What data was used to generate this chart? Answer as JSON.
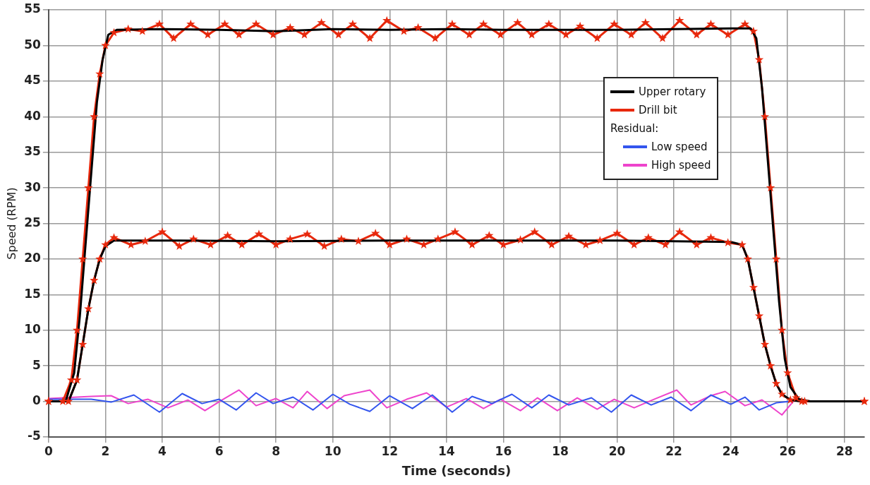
{
  "chart_data": {
    "type": "line",
    "xlabel": "Time (seconds)",
    "ylabel": "Speed (RPM)",
    "legend_title": "Residual:",
    "legend": "top right",
    "grid": true,
    "xlim": [
      0,
      28.7
    ],
    "ylim": [
      -5,
      55
    ],
    "xticks": [
      0,
      2,
      4,
      6,
      8,
      10,
      12,
      14,
      16,
      18,
      20,
      22,
      24,
      26,
      28
    ],
    "yticks": [
      -5,
      0,
      5,
      10,
      15,
      20,
      25,
      30,
      35,
      40,
      45,
      50,
      55
    ],
    "series": [
      {
        "name": "Upper rotary",
        "color": "#000000",
        "marker": "none",
        "x": [
          0,
          0.6,
          0.9,
          1.1,
          1.3,
          1.5,
          1.7,
          1.9,
          2.1,
          2.4,
          4,
          6,
          8,
          10,
          12,
          14,
          16,
          18,
          20,
          22,
          24,
          24.7,
          24.9,
          25.1,
          25.3,
          25.5,
          25.7,
          25.9,
          26.1,
          26.4,
          26.8,
          28.7
        ],
        "values": [
          0,
          0,
          4,
          12,
          22,
          32,
          42,
          48,
          51.5,
          52.2,
          52.3,
          52.2,
          52,
          52.3,
          52.2,
          52.3,
          52.2,
          52.2,
          52.2,
          52.3,
          52.4,
          52.4,
          51,
          44,
          34,
          24,
          14,
          6,
          2,
          0.3,
          0,
          0
        ]
      },
      {
        "name": "Drill bit",
        "color": "#e8280c",
        "marker": "star",
        "x": [
          0,
          0.5,
          0.8,
          1.0,
          1.2,
          1.4,
          1.6,
          1.8,
          2.0,
          2.3,
          2.8,
          3.3,
          3.9,
          4.4,
          5.0,
          5.6,
          6.2,
          6.7,
          7.3,
          7.9,
          8.5,
          9.0,
          9.6,
          10.2,
          10.7,
          11.3,
          11.9,
          12.5,
          13.0,
          13.6,
          14.2,
          14.8,
          15.3,
          15.9,
          16.5,
          17.0,
          17.6,
          18.2,
          18.7,
          19.3,
          19.9,
          20.5,
          21.0,
          21.6,
          22.2,
          22.8,
          23.3,
          23.9,
          24.5,
          24.8,
          25.0,
          25.2,
          25.4,
          25.6,
          25.8,
          26.0,
          26.3,
          26.6,
          28.7
        ],
        "values": [
          0,
          0,
          3,
          10,
          20,
          30,
          40,
          46,
          50,
          51.8,
          52.3,
          52,
          53,
          51,
          53,
          51.5,
          53,
          51.5,
          53,
          51.5,
          52.5,
          51.5,
          53.2,
          51.5,
          53,
          51,
          53.5,
          52,
          52.5,
          51,
          53,
          51.5,
          53,
          51.5,
          53.2,
          51.5,
          53,
          51.5,
          52.7,
          51,
          53,
          51.5,
          53.2,
          51,
          53.5,
          51.5,
          53,
          51.5,
          53,
          52,
          48,
          40,
          30,
          20,
          10,
          4,
          0.5,
          0,
          0
        ]
      },
      {
        "color": "#000000",
        "marker": "none",
        "x": [
          0,
          0.7,
          1.0,
          1.2,
          1.4,
          1.6,
          1.8,
          2.0,
          2.3,
          4,
          8,
          12,
          16,
          20,
          24,
          24.4,
          24.6,
          24.8,
          25.0,
          25.2,
          25.4,
          25.6,
          25.8,
          26.1,
          26.5,
          28.7
        ],
        "values": [
          0,
          0,
          3,
          8,
          13,
          17,
          20,
          21.8,
          22.6,
          22.6,
          22.5,
          22.6,
          22.6,
          22.6,
          22.4,
          22,
          20,
          16,
          12,
          8,
          5,
          2.5,
          1,
          0.2,
          0,
          0
        ]
      },
      {
        "color": "#e8280c",
        "marker": "star",
        "x": [
          0,
          0.7,
          1.0,
          1.2,
          1.4,
          1.6,
          1.8,
          2.0,
          2.3,
          2.9,
          3.4,
          4.0,
          4.6,
          5.1,
          5.7,
          6.3,
          6.8,
          7.4,
          8.0,
          8.5,
          9.1,
          9.7,
          10.3,
          10.9,
          11.5,
          12.0,
          12.6,
          13.2,
          13.7,
          14.3,
          14.9,
          15.5,
          16.0,
          16.6,
          17.1,
          17.7,
          18.3,
          18.9,
          19.4,
          20.0,
          20.6,
          21.1,
          21.7,
          22.2,
          22.8,
          23.3,
          23.9,
          24.4,
          24.6,
          24.8,
          25.0,
          25.2,
          25.4,
          25.6,
          25.8,
          26.1,
          26.5,
          28.7
        ],
        "values": [
          0,
          0,
          3,
          8,
          13,
          17,
          20,
          22,
          23,
          22,
          22.5,
          23.8,
          21.8,
          22.8,
          22,
          23.3,
          22,
          23.5,
          22,
          22.8,
          23.5,
          21.8,
          22.8,
          22.5,
          23.6,
          22,
          22.8,
          22,
          22.8,
          23.8,
          22,
          23.3,
          22,
          22.7,
          23.8,
          22,
          23.2,
          22,
          22.6,
          23.6,
          22,
          23,
          22,
          23.8,
          22,
          23,
          22.3,
          22,
          20,
          16,
          12,
          8,
          5,
          2.5,
          1,
          0.2,
          0,
          0
        ]
      },
      {
        "name": "Low speed",
        "color": "#3355ee",
        "marker": "none",
        "x": [
          0,
          1.5,
          2.2,
          3.0,
          3.9,
          4.7,
          5.4,
          6.0,
          6.6,
          7.3,
          7.9,
          8.6,
          9.3,
          10.0,
          10.6,
          11.3,
          12.0,
          12.8,
          13.5,
          14.2,
          14.9,
          15.6,
          16.3,
          17.0,
          17.6,
          18.3,
          19.1,
          19.8,
          20.5,
          21.2,
          21.9,
          22.6,
          23.3,
          24.0,
          24.5,
          25.0,
          25.6,
          26.1
        ],
        "values": [
          0.3,
          0.3,
          -0.1,
          0.9,
          -1.5,
          1.1,
          -0.3,
          0.3,
          -1.2,
          1.2,
          -0.3,
          0.6,
          -1.2,
          1.0,
          -0.4,
          -1.4,
          0.8,
          -1.0,
          0.9,
          -1.5,
          0.7,
          -0.3,
          1.0,
          -0.9,
          0.9,
          -0.5,
          0.5,
          -1.5,
          0.9,
          -0.5,
          0.6,
          -1.3,
          0.9,
          -0.4,
          0.6,
          -1.2,
          -0.2,
          0
        ]
      },
      {
        "name": "High speed",
        "color": "#ee44cc",
        "marker": "none",
        "x": [
          0,
          1.5,
          2.2,
          2.8,
          3.5,
          4.2,
          4.9,
          5.5,
          6.1,
          6.7,
          7.3,
          8.0,
          8.6,
          9.1,
          9.8,
          10.4,
          11.3,
          11.9,
          12.6,
          13.3,
          14.0,
          14.7,
          15.3,
          15.9,
          16.6,
          17.2,
          17.9,
          18.6,
          19.3,
          19.9,
          20.6,
          21.3,
          22.1,
          22.6,
          23.3,
          23.8,
          24.5,
          25.1,
          25.8,
          26.2
        ],
        "values": [
          0.4,
          0.7,
          0.8,
          -0.3,
          0.3,
          -0.9,
          0.2,
          -1.3,
          0.2,
          1.6,
          -0.6,
          0.4,
          -0.9,
          1.4,
          -1.0,
          0.8,
          1.6,
          -0.9,
          0.3,
          1.2,
          -0.8,
          0.4,
          -1.0,
          0.3,
          -1.3,
          0.5,
          -1.3,
          0.5,
          -1.1,
          0.3,
          -0.9,
          0.3,
          1.6,
          -0.5,
          0.8,
          1.4,
          -0.6,
          0.2,
          -1.9,
          0
        ]
      }
    ]
  }
}
